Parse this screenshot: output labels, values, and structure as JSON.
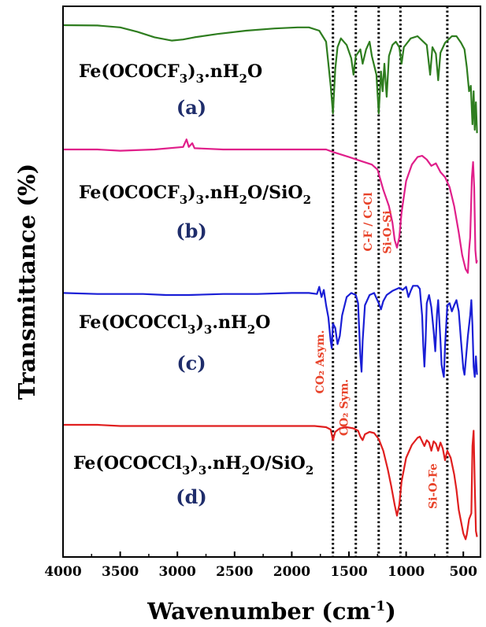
{
  "chart_data": {
    "type": "line",
    "title": "",
    "xlabel": "Wavenumber (cm",
    "xlabel_sup": "-1",
    "xlabel_close": ")",
    "ylabel": "Transmittance (%)",
    "xlim": [
      4000,
      350
    ],
    "x_ticks": [
      "4000",
      "3500",
      "3000",
      "2500",
      "2000",
      "1500",
      "1000",
      "500"
    ],
    "x_tick_values": [
      4000,
      3500,
      3000,
      2500,
      2000,
      1500,
      1000,
      500
    ],
    "grid": false,
    "legend": "none",
    "reference_lines": [
      1640,
      1440,
      1240,
      1050,
      640
    ],
    "band_labels": [
      {
        "text": "CO₂ Asym.",
        "x": 1680
      },
      {
        "text": "CO₂ Sym.",
        "x": 1470
      },
      {
        "text": "C-F / C-Cl",
        "x": 1260
      },
      {
        "text": "Si-O-Si",
        "x": 1090
      },
      {
        "text": "Si-O-Fe",
        "x": 690
      }
    ],
    "series": [
      {
        "label_parts": [
          "Fe(OCOCF",
          "3",
          ")",
          "3",
          ".nH",
          "2",
          "O"
        ],
        "letter": "(a)",
        "color": "#2e7d1f",
        "points": [
          [
            4000,
            0
          ],
          [
            3700,
            0.3
          ],
          [
            3500,
            2
          ],
          [
            3350,
            6
          ],
          [
            3200,
            11
          ],
          [
            3050,
            14
          ],
          [
            2950,
            13
          ],
          [
            2850,
            11
          ],
          [
            2650,
            8
          ],
          [
            2400,
            5
          ],
          [
            2150,
            3
          ],
          [
            1950,
            2
          ],
          [
            1850,
            2
          ],
          [
            1760,
            5
          ],
          [
            1700,
            15
          ],
          [
            1660,
            55
          ],
          [
            1640,
            80
          ],
          [
            1620,
            40
          ],
          [
            1600,
            20
          ],
          [
            1570,
            12
          ],
          [
            1520,
            18
          ],
          [
            1480,
            30
          ],
          [
            1460,
            45
          ],
          [
            1440,
            28
          ],
          [
            1400,
            22
          ],
          [
            1380,
            35
          ],
          [
            1350,
            22
          ],
          [
            1320,
            15
          ],
          [
            1300,
            28
          ],
          [
            1260,
            45
          ],
          [
            1240,
            80
          ],
          [
            1220,
            42
          ],
          [
            1205,
            60
          ],
          [
            1190,
            35
          ],
          [
            1170,
            65
          ],
          [
            1150,
            28
          ],
          [
            1120,
            18
          ],
          [
            1090,
            15
          ],
          [
            1060,
            20
          ],
          [
            1040,
            35
          ],
          [
            1020,
            20
          ],
          [
            960,
            12
          ],
          [
            900,
            10
          ],
          [
            820,
            18
          ],
          [
            790,
            45
          ],
          [
            770,
            20
          ],
          [
            740,
            26
          ],
          [
            720,
            50
          ],
          [
            700,
            25
          ],
          [
            660,
            16
          ],
          [
            600,
            10
          ],
          [
            560,
            10
          ],
          [
            520,
            16
          ],
          [
            490,
            22
          ],
          [
            470,
            38
          ],
          [
            450,
            60
          ],
          [
            435,
            55
          ],
          [
            420,
            90
          ],
          [
            410,
            60
          ],
          [
            400,
            95
          ],
          [
            390,
            70
          ],
          [
            380,
            98
          ]
        ]
      },
      {
        "label_parts": [
          "Fe(OCOCF",
          "3",
          ")",
          "3",
          ".nH",
          "2",
          "O/SiO",
          "2"
        ],
        "letter": "(b)",
        "color": "#e01f8a",
        "points": [
          [
            4000,
            0
          ],
          [
            3700,
            0
          ],
          [
            3500,
            1
          ],
          [
            3200,
            0
          ],
          [
            2950,
            -2
          ],
          [
            2920,
            -8
          ],
          [
            2900,
            -2
          ],
          [
            2870,
            -5
          ],
          [
            2850,
            -1
          ],
          [
            2600,
            0
          ],
          [
            2300,
            0
          ],
          [
            2000,
            0
          ],
          [
            1800,
            0
          ],
          [
            1700,
            0
          ],
          [
            1640,
            2
          ],
          [
            1500,
            6
          ],
          [
            1400,
            9
          ],
          [
            1300,
            12
          ],
          [
            1250,
            16
          ],
          [
            1200,
            32
          ],
          [
            1150,
            45
          ],
          [
            1120,
            58
          ],
          [
            1100,
            72
          ],
          [
            1080,
            78
          ],
          [
            1060,
            70
          ],
          [
            1040,
            50
          ],
          [
            1000,
            25
          ],
          [
            950,
            12
          ],
          [
            900,
            6
          ],
          [
            860,
            5
          ],
          [
            820,
            8
          ],
          [
            780,
            13
          ],
          [
            740,
            11
          ],
          [
            700,
            18
          ],
          [
            660,
            22
          ],
          [
            620,
            30
          ],
          [
            580,
            45
          ],
          [
            540,
            66
          ],
          [
            510,
            84
          ],
          [
            480,
            95
          ],
          [
            460,
            98
          ],
          [
            450,
            80
          ],
          [
            440,
            70
          ],
          [
            425,
            22
          ],
          [
            415,
            10
          ],
          [
            405,
            30
          ],
          [
            395,
            80
          ],
          [
            385,
            90
          ],
          [
            380,
            88
          ]
        ]
      },
      {
        "label_parts": [
          "Fe(OCOCCl",
          "3",
          ")",
          "3",
          ".nH",
          "2",
          "O"
        ],
        "letter": "(c)",
        "color": "#1a1fd6",
        "points": [
          [
            4000,
            8
          ],
          [
            3700,
            9
          ],
          [
            3500,
            9
          ],
          [
            3300,
            9
          ],
          [
            3100,
            10
          ],
          [
            2900,
            10
          ],
          [
            2600,
            9
          ],
          [
            2300,
            9
          ],
          [
            2000,
            8
          ],
          [
            1850,
            8
          ],
          [
            1780,
            9
          ],
          [
            1760,
            2
          ],
          [
            1740,
            12
          ],
          [
            1720,
            5
          ],
          [
            1700,
            20
          ],
          [
            1680,
            32
          ],
          [
            1660,
            55
          ],
          [
            1650,
            62
          ],
          [
            1640,
            38
          ],
          [
            1620,
            42
          ],
          [
            1600,
            58
          ],
          [
            1580,
            50
          ],
          [
            1560,
            30
          ],
          [
            1520,
            12
          ],
          [
            1480,
            8
          ],
          [
            1440,
            10
          ],
          [
            1420,
            18
          ],
          [
            1400,
            70
          ],
          [
            1390,
            85
          ],
          [
            1380,
            55
          ],
          [
            1360,
            20
          ],
          [
            1320,
            10
          ],
          [
            1280,
            8
          ],
          [
            1240,
            18
          ],
          [
            1220,
            24
          ],
          [
            1200,
            16
          ],
          [
            1170,
            10
          ],
          [
            1120,
            6
          ],
          [
            1060,
            3
          ],
          [
            1030,
            5
          ],
          [
            1000,
            2
          ],
          [
            980,
            12
          ],
          [
            960,
            6
          ],
          [
            940,
            1
          ],
          [
            900,
            1
          ],
          [
            880,
            4
          ],
          [
            860,
            30
          ],
          [
            850,
            60
          ],
          [
            840,
            80
          ],
          [
            830,
            55
          ],
          [
            820,
            18
          ],
          [
            800,
            10
          ],
          [
            780,
            22
          ],
          [
            760,
            45
          ],
          [
            745,
            65
          ],
          [
            730,
            28
          ],
          [
            720,
            15
          ],
          [
            700,
            55
          ],
          [
            690,
            78
          ],
          [
            680,
            85
          ],
          [
            670,
            90
          ],
          [
            660,
            60
          ],
          [
            640,
            20
          ],
          [
            620,
            18
          ],
          [
            600,
            26
          ],
          [
            580,
            20
          ],
          [
            560,
            15
          ],
          [
            540,
            26
          ],
          [
            520,
            55
          ],
          [
            500,
            82
          ],
          [
            490,
            88
          ],
          [
            480,
            76
          ],
          [
            460,
            50
          ],
          [
            440,
            30
          ],
          [
            430,
            15
          ],
          [
            420,
            40
          ],
          [
            410,
            80
          ],
          [
            400,
            90
          ],
          [
            390,
            70
          ],
          [
            380,
            88
          ]
        ]
      },
      {
        "label_parts": [
          "Fe(OCOCCl",
          "3",
          ")",
          "3",
          ".nH",
          "2",
          "O/SiO",
          "2"
        ],
        "letter": "(d)",
        "color": "#e01f1f",
        "points": [
          [
            4000,
            0
          ],
          [
            3700,
            0
          ],
          [
            3500,
            1
          ],
          [
            3200,
            1
          ],
          [
            2900,
            1
          ],
          [
            2600,
            1
          ],
          [
            2300,
            1
          ],
          [
            2000,
            1
          ],
          [
            1800,
            1
          ],
          [
            1700,
            2
          ],
          [
            1660,
            4
          ],
          [
            1640,
            13
          ],
          [
            1620,
            6
          ],
          [
            1580,
            3
          ],
          [
            1520,
            2
          ],
          [
            1460,
            3
          ],
          [
            1420,
            5
          ],
          [
            1400,
            10
          ],
          [
            1380,
            13
          ],
          [
            1360,
            8
          ],
          [
            1320,
            6
          ],
          [
            1280,
            7
          ],
          [
            1240,
            12
          ],
          [
            1200,
            22
          ],
          [
            1160,
            38
          ],
          [
            1130,
            52
          ],
          [
            1100,
            68
          ],
          [
            1080,
            77
          ],
          [
            1060,
            68
          ],
          [
            1040,
            48
          ],
          [
            1000,
            28
          ],
          [
            950,
            17
          ],
          [
            900,
            11
          ],
          [
            880,
            10
          ],
          [
            860,
            14
          ],
          [
            840,
            18
          ],
          [
            820,
            13
          ],
          [
            800,
            15
          ],
          [
            780,
            22
          ],
          [
            760,
            14
          ],
          [
            740,
            16
          ],
          [
            720,
            22
          ],
          [
            700,
            15
          ],
          [
            680,
            20
          ],
          [
            660,
            30
          ],
          [
            640,
            22
          ],
          [
            610,
            28
          ],
          [
            580,
            42
          ],
          [
            560,
            55
          ],
          [
            540,
            72
          ],
          [
            520,
            82
          ],
          [
            500,
            92
          ],
          [
            480,
            97
          ],
          [
            470,
            93
          ],
          [
            450,
            80
          ],
          [
            430,
            75
          ],
          [
            420,
            18
          ],
          [
            410,
            5
          ],
          [
            400,
            50
          ],
          [
            390,
            90
          ],
          [
            380,
            95
          ]
        ]
      }
    ]
  }
}
